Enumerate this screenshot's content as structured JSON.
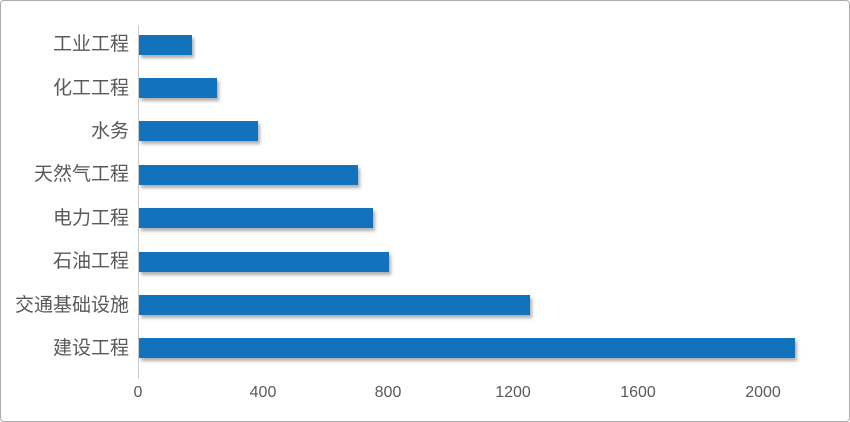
{
  "chart_data": {
    "type": "bar",
    "orientation": "horizontal",
    "title": "",
    "xlabel": "",
    "ylabel": "",
    "categories": [
      "工业工程",
      "化工工程",
      "水务",
      "天然气工程",
      "电力工程",
      "石油工程",
      "交通基础设施",
      "建设工程"
    ],
    "values": [
      170,
      250,
      380,
      700,
      750,
      800,
      1250,
      2100
    ],
    "x_ticks": [
      0,
      400,
      800,
      1200,
      1600,
      2000
    ],
    "xlim": [
      0,
      2220
    ],
    "grid": false,
    "legend": "none",
    "bar_color": "#1272bc",
    "axis_line_color": "#c9c9c9",
    "label_color": "#595959",
    "frame_border_color": "#ababab"
  }
}
